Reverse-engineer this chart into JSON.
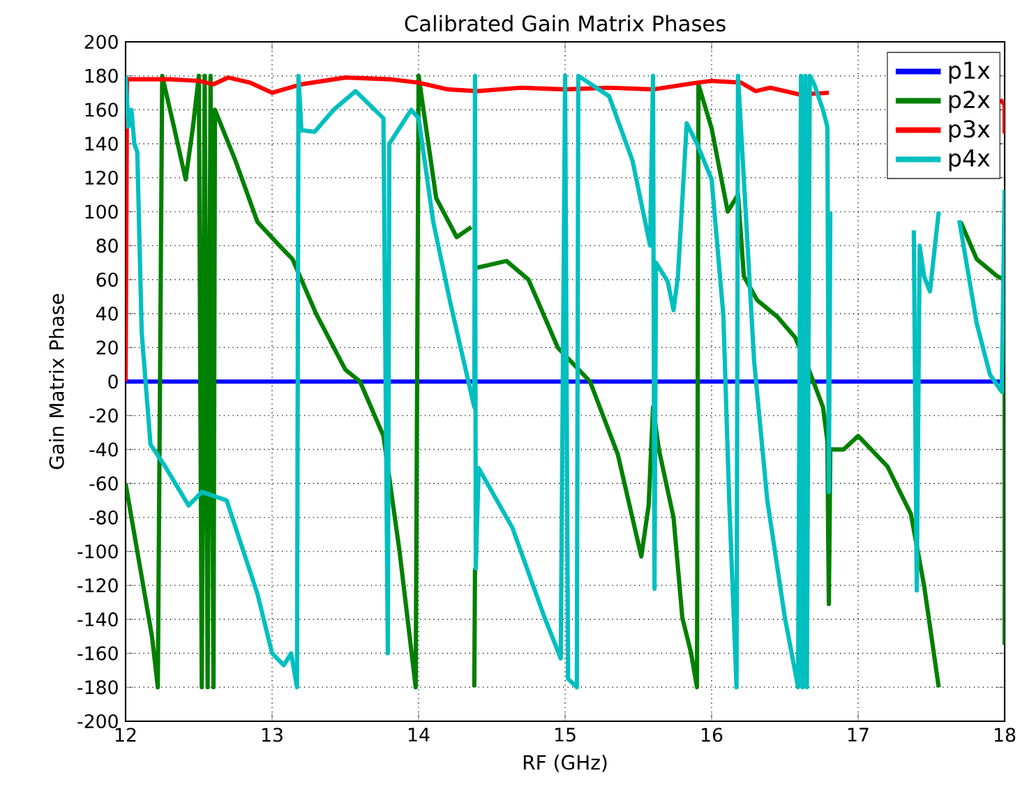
{
  "chart_data": {
    "type": "line",
    "title": "Calibrated Gain Matrix Phases",
    "xlabel": "RF (GHz)",
    "ylabel": "Gain Matrix Phase",
    "xlim": [
      12,
      18
    ],
    "ylim": [
      -200,
      200
    ],
    "xticks": [
      12,
      13,
      14,
      15,
      16,
      17,
      18
    ],
    "yticks": [
      -200,
      -180,
      -160,
      -140,
      -120,
      -100,
      -80,
      -60,
      -40,
      -20,
      0,
      20,
      40,
      60,
      80,
      100,
      120,
      140,
      160,
      180,
      200
    ],
    "grid": true,
    "legend": "top right",
    "series": [
      {
        "name": "p1x",
        "color": "#0000ff",
        "x": [
          12,
          18
        ],
        "values": [
          0,
          0
        ]
      },
      {
        "name": "p2x",
        "color": "#008000",
        "x": [
          12.0,
          12.1,
          12.18,
          12.22,
          12.25,
          12.33,
          12.41,
          12.46,
          12.5,
          12.52,
          12.54,
          12.56,
          12.58,
          12.6,
          12.61,
          12.75,
          12.9,
          13.05,
          13.14,
          13.3,
          13.5,
          13.6,
          13.76,
          13.87,
          13.98,
          14.0,
          14.12,
          14.26,
          14.36,
          14.375,
          14.38,
          14.385,
          14.39,
          14.4,
          14.6,
          14.75,
          14.95,
          15.17,
          15.36,
          15.52,
          15.57,
          15.6,
          15.64,
          15.74,
          15.8,
          15.86,
          15.9,
          15.91,
          16.0,
          16.11,
          16.18,
          16.22,
          16.31,
          16.45,
          16.57,
          16.65,
          16.76,
          16.79,
          16.8,
          16.81,
          16.9,
          17.0,
          17.2,
          17.36,
          17.45,
          17.55,
          17.57,
          17.62,
          17.7,
          17.81,
          17.95,
          18.0,
          18.0
        ],
        "values": [
          -60,
          -110,
          -150,
          -180,
          180,
          150,
          119,
          150,
          180,
          -180,
          180,
          -180,
          180,
          -180,
          160,
          130,
          94,
          80,
          72,
          40,
          7,
          0,
          -32,
          -100,
          -180,
          180,
          108,
          85,
          91,
          null,
          -180,
          -110,
          null,
          67,
          71,
          60,
          20,
          0,
          -43,
          -103,
          -73,
          -15,
          -40,
          -80,
          -139,
          -160,
          -180,
          175,
          149,
          100,
          110,
          62,
          48,
          38,
          26,
          10,
          -15,
          -35,
          -131,
          -40,
          -40,
          -32,
          -50,
          -78,
          -120,
          -180,
          null,
          null,
          94,
          72,
          62,
          60,
          -155
        ]
      },
      {
        "name": "p3x",
        "color": "#ff0000",
        "x": [
          12,
          12.01,
          12.3,
          12.5,
          12.6,
          12.7,
          12.85,
          13.0,
          13.2,
          13.5,
          13.8,
          14.0,
          14.2,
          14.4,
          14.7,
          15.0,
          15.3,
          15.6,
          15.9,
          16.0,
          16.2,
          16.3,
          16.4,
          16.6,
          16.8,
          16.85,
          17.97,
          18,
          18.0
        ],
        "values": [
          0,
          178,
          178,
          177,
          175,
          179,
          176,
          170,
          175,
          179,
          178,
          176,
          172,
          171,
          173,
          172,
          173,
          172,
          176,
          177,
          176,
          171,
          173,
          169,
          170,
          null,
          166,
          163,
          146
        ]
      },
      {
        "name": "p4x",
        "color": "#00bfbf",
        "x": [
          12.0,
          12.02,
          12.04,
          12.06,
          12.08,
          12.11,
          12.17,
          12.27,
          12.43,
          12.52,
          12.69,
          12.9,
          13.0,
          13.08,
          13.13,
          13.17,
          13.18,
          13.2,
          13.29,
          13.42,
          13.57,
          13.76,
          13.79,
          13.8,
          13.95,
          14.0,
          14.1,
          14.22,
          14.38,
          14.385,
          14.39,
          14.41,
          14.64,
          14.86,
          14.97,
          15.0,
          15.02,
          15.08,
          15.09,
          15.3,
          15.46,
          15.58,
          15.6,
          15.61,
          15.62,
          15.7,
          15.74,
          15.77,
          15.83,
          15.9,
          16.0,
          16.08,
          16.12,
          16.17,
          16.18,
          16.22,
          16.29,
          16.38,
          16.5,
          16.59,
          16.61,
          16.62,
          16.64,
          16.65,
          16.67,
          16.7,
          16.76,
          16.79,
          16.8,
          16.81,
          16.85,
          17.38,
          17.4,
          17.42,
          17.45,
          17.49,
          17.55,
          17.6,
          17.69,
          17.81,
          17.9,
          17.98,
          18.0
        ],
        "values": [
          180,
          150,
          160,
          140,
          135,
          29,
          -37,
          -50,
          -73,
          -65,
          -70,
          -125,
          -160,
          -167,
          -160,
          -180,
          180,
          148,
          147,
          160,
          171,
          155,
          -160,
          140,
          160,
          155,
          94,
          45,
          -15,
          180,
          -110,
          -51,
          -86,
          -139,
          -163,
          180,
          -175,
          -180,
          180,
          168,
          130,
          80,
          180,
          -122,
          70,
          59,
          42,
          62,
          152,
          140,
          119,
          39,
          -70,
          -180,
          180,
          119,
          12,
          -70,
          -139,
          -180,
          180,
          -180,
          180,
          -180,
          180,
          175,
          160,
          150,
          -65,
          100,
          null,
          89,
          -123,
          80,
          62,
          53,
          100,
          null,
          95,
          34,
          4,
          -6,
          113
        ]
      }
    ]
  }
}
